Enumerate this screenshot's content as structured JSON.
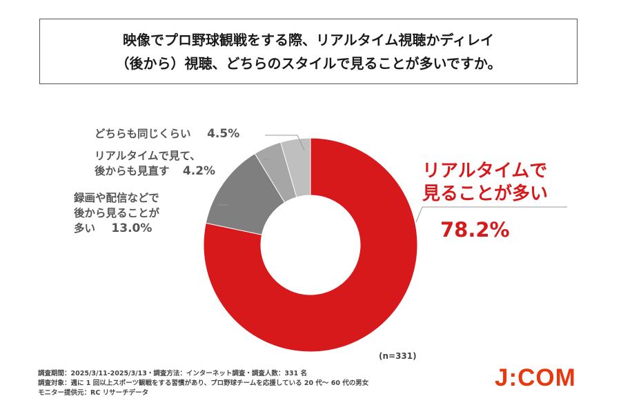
{
  "title": {
    "line1": "映像でプロ野球観戦をする際、リアルタイム視聴かディレイ",
    "line2": "（後から）視聴、どちらのスタイルで見ることが多いですか。"
  },
  "chart_data": {
    "type": "pie",
    "variant": "donut",
    "title": "映像でプロ野球観戦をする際、リアルタイム視聴かディレイ（後から）視聴、どちらのスタイルで見ることが多いですか。",
    "slices": [
      {
        "label_lines": [
          "リアルタイムで",
          "見ることが多い"
        ],
        "value": 78.2,
        "value_label": "78.2%",
        "color": "#d7191c"
      },
      {
        "label_lines": [
          "録画や配信などで",
          "後から見ることが",
          "多い"
        ],
        "value": 13.0,
        "value_label": "13.0%",
        "color": "#7f7f7f"
      },
      {
        "label_lines": [
          "リアルタイムで見て、",
          "後からも見直す"
        ],
        "value": 4.2,
        "value_label": "4.2%",
        "color": "#a6a6a6"
      },
      {
        "label_lines": [
          "どちらも同じくらい"
        ],
        "value": 4.5,
        "value_label": "4.5%",
        "color": "#bfbfbf"
      }
    ],
    "sample_size": "(n=331)"
  },
  "footnotes": [
    "調査期間：2025/3/11-2025/3/13・調査方法：インターネット調査・調査人数：331 名",
    "調査対象：週に 1 回以上スポーツ観戦をする習慣があり、プロ野球チームを応援している 20 代～ 60 代の男女",
    "モニター提供元：RC リサーチデータ"
  ],
  "logo": {
    "text": "J:COM",
    "color": "#e8380d"
  }
}
